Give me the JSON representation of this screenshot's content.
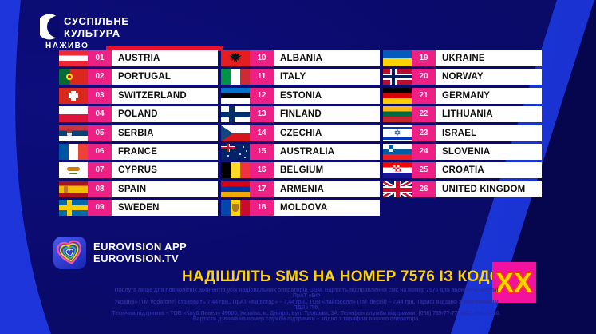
{
  "branding": {
    "channel_line1": "СУСПІЛЬНЕ",
    "channel_line2": "КУЛЬТУРА",
    "live_label": "НАЖИВО"
  },
  "columns": [
    {
      "entries": [
        {
          "num": "01",
          "country": "AUSTRIA",
          "flag": "at"
        },
        {
          "num": "02",
          "country": "PORTUGAL",
          "flag": "pt"
        },
        {
          "num": "03",
          "country": "SWITZERLAND",
          "flag": "ch"
        },
        {
          "num": "04",
          "country": "POLAND",
          "flag": "pl"
        },
        {
          "num": "05",
          "country": "SERBIA",
          "flag": "rs"
        },
        {
          "num": "06",
          "country": "FRANCE",
          "flag": "fr"
        },
        {
          "num": "07",
          "country": "CYPRUS",
          "flag": "cy"
        },
        {
          "num": "08",
          "country": "SPAIN",
          "flag": "es"
        },
        {
          "num": "09",
          "country": "SWEDEN",
          "flag": "se"
        }
      ]
    },
    {
      "entries": [
        {
          "num": "10",
          "country": "ALBANIA",
          "flag": "al"
        },
        {
          "num": "11",
          "country": "ITALY",
          "flag": "it"
        },
        {
          "num": "12",
          "country": "ESTONIA",
          "flag": "ee"
        },
        {
          "num": "13",
          "country": "FINLAND",
          "flag": "fi"
        },
        {
          "num": "14",
          "country": "CZECHIA",
          "flag": "cz"
        },
        {
          "num": "15",
          "country": "AUSTRALIA",
          "flag": "au"
        },
        {
          "num": "16",
          "country": "BELGIUM",
          "flag": "be"
        },
        {
          "num": "17",
          "country": "ARMENIA",
          "flag": "am"
        },
        {
          "num": "18",
          "country": "MOLDOVA",
          "flag": "md"
        }
      ]
    },
    {
      "entries": [
        {
          "num": "19",
          "country": "UKRAINE",
          "flag": "ua"
        },
        {
          "num": "20",
          "country": "NORWAY",
          "flag": "no"
        },
        {
          "num": "21",
          "country": "GERMANY",
          "flag": "de"
        },
        {
          "num": "22",
          "country": "LITHUANIA",
          "flag": "lt"
        },
        {
          "num": "23",
          "country": "ISRAEL",
          "flag": "il"
        },
        {
          "num": "24",
          "country": "SLOVENIA",
          "flag": "si"
        },
        {
          "num": "25",
          "country": "CROATIA",
          "flag": "hr"
        },
        {
          "num": "26",
          "country": "UNITED KINGDOM",
          "flag": "gb"
        }
      ]
    }
  ],
  "footer": {
    "app_line1": "EUROVISION APP",
    "app_line2": "EUROVISION.TV",
    "sms_text": "НАДІШЛІТЬ SMS НА НОМЕР 7576 ІЗ КОДОМ:",
    "code_value": "XX",
    "disclaimer_lines": [
      "Послуга лише для повнолітніх абонентів усіх національних операторів GSM. Вартість відправлення смс на номер 7576 для абонентів мережі ПрАТ «ВФ",
      "Україна» (ТМ Vodafone) становить 7,44 грн., ПрАТ «Київстар» – 7,44 грн., ТОВ «лайфселл» (ТМ lifecell) – 7,44 грн. Тариф вказано з урахуванням ПДВ і ПФ.",
      "Технічна підтримка – ТОВ «Клуб Левел» 49000, Україна, м. Дніпро, вул. Троїцька, 3А. Телефон служби підтримки: (056) 735-77-77, (067) 539-70-60.",
      "Вартість дзвінка на номер служби підтримки – згідно з тарифом вашого оператора."
    ]
  },
  "colors": {
    "accent_pink": "#EC2085",
    "code_box_pink": "#F312A0",
    "yellow": "#FFD500",
    "code_red": "#FF3C00",
    "navy": "#0A0A6C",
    "bright_blue": "#1F35DC",
    "dark_navy": "#06064E",
    "live_red": "#E8112D"
  }
}
